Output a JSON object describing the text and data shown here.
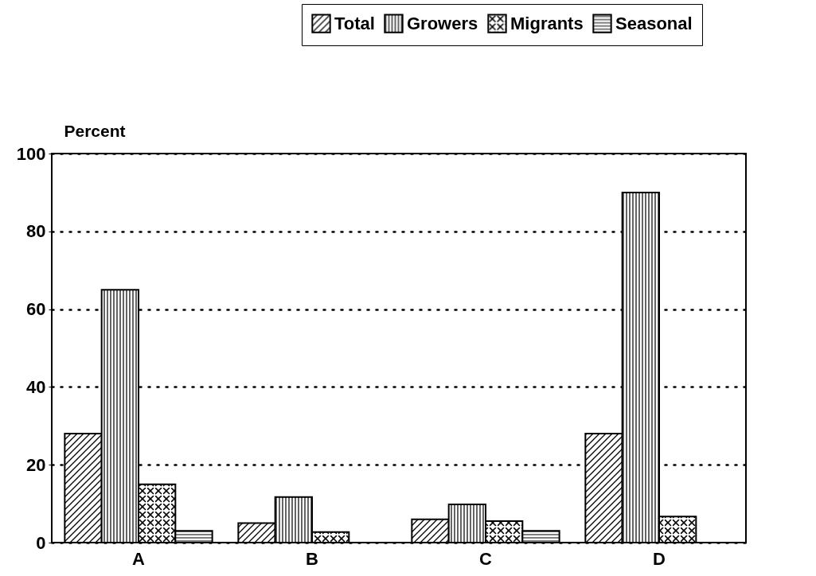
{
  "chart_data": {
    "type": "bar",
    "ylabel": "Percent",
    "categories": [
      "A",
      "B",
      "C",
      "D"
    ],
    "series": [
      {
        "name": "Total",
        "color": "#000000",
        "values": [
          28,
          5,
          6,
          28
        ]
      },
      {
        "name": "Growers",
        "color": "#000000",
        "values": [
          65,
          11.7,
          9.8,
          90
        ]
      },
      {
        "name": "Migrants",
        "color": "#000000",
        "values": [
          15,
          2.7,
          5.5,
          6.7
        ]
      },
      {
        "name": "Seasonal",
        "color": "#000000",
        "values": [
          3,
          null,
          3,
          null
        ]
      }
    ],
    "ylim": [
      0,
      100
    ],
    "yticks": [
      0,
      20,
      40,
      60,
      80,
      100
    ],
    "grid": "y",
    "legend": "top right"
  }
}
